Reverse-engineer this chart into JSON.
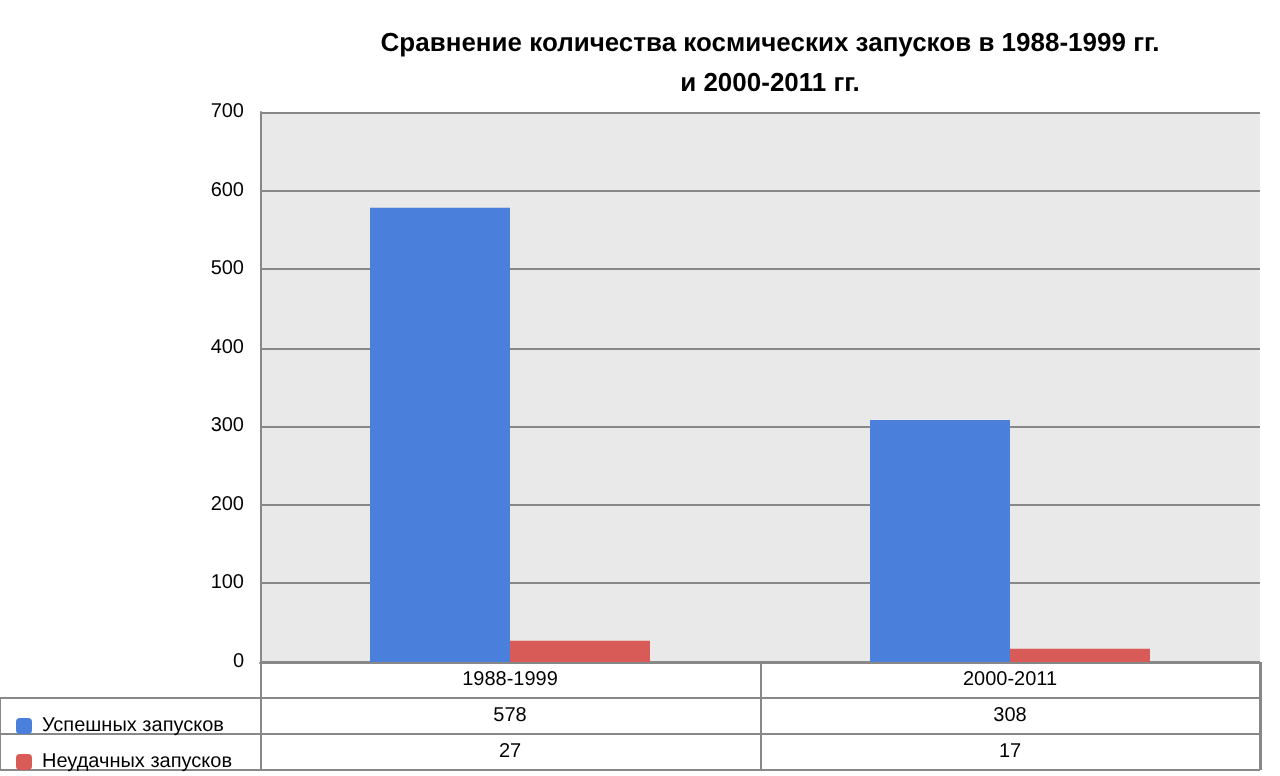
{
  "chart_data": {
    "type": "bar",
    "title": "Сравнение количества космических запусков в 1988-1999 гг.\nи 2000-2011 гг.",
    "categories": [
      "1988-1999",
      "2000-2011"
    ],
    "series": [
      {
        "name": "Успешных запусков",
        "color": "#4a7fdc",
        "values": [
          578,
          308
        ]
      },
      {
        "name": "Неудачных запусков",
        "color": "#d95b57",
        "values": [
          27,
          17
        ]
      }
    ],
    "ylim": [
      0,
      700
    ],
    "yticks": [
      0,
      100,
      200,
      300,
      400,
      500,
      600,
      700
    ],
    "grid": "y",
    "legend": "bottom",
    "data_labels": true
  }
}
